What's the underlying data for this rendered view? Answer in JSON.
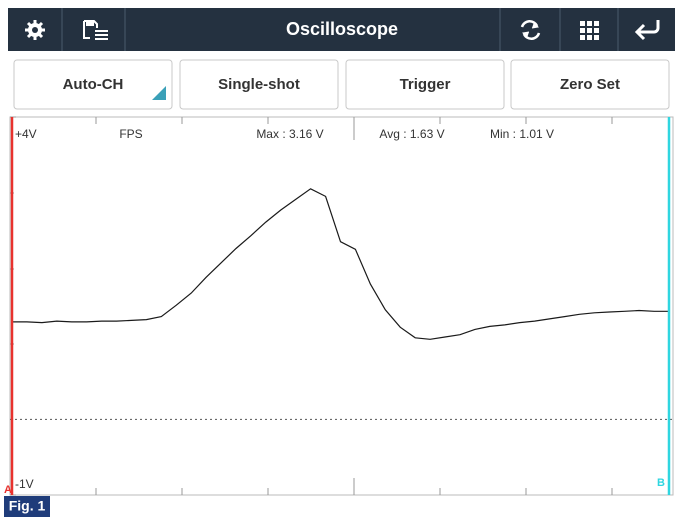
{
  "toolbar": {
    "title": "Oscilloscope"
  },
  "buttons": [
    "Auto-CH",
    "Single-shot",
    "Trigger",
    "Zero Set"
  ],
  "chart_data": {
    "type": "line",
    "ylim": [
      -1,
      4
    ],
    "yticks": [
      {
        "value": 4,
        "label": "+4V"
      },
      {
        "value": -1,
        "label": "-1V"
      }
    ],
    "annotations": [
      "FPS",
      "Max : 3.16 V",
      "Avg : 1.63 V",
      "Min : 1.01 V"
    ],
    "cursors": [
      {
        "name": "A",
        "color": "#e8322e"
      },
      {
        "name": "B",
        "color": "#2fd6e0"
      }
    ],
    "series": [
      {
        "color": "#1a1a1a",
        "values": [
          1.29,
          1.29,
          1.28,
          1.3,
          1.29,
          1.29,
          1.3,
          1.3,
          1.31,
          1.32,
          1.36,
          1.51,
          1.67,
          1.88,
          2.07,
          2.26,
          2.43,
          2.61,
          2.77,
          2.91,
          3.05,
          2.95,
          2.35,
          2.25,
          1.79,
          1.45,
          1.22,
          1.08,
          1.06,
          1.09,
          1.12,
          1.19,
          1.23,
          1.25,
          1.28,
          1.3,
          1.33,
          1.36,
          1.39,
          1.41,
          1.42,
          1.43,
          1.44,
          1.43,
          1.43
        ]
      }
    ]
  },
  "caption": "Fig. 1"
}
